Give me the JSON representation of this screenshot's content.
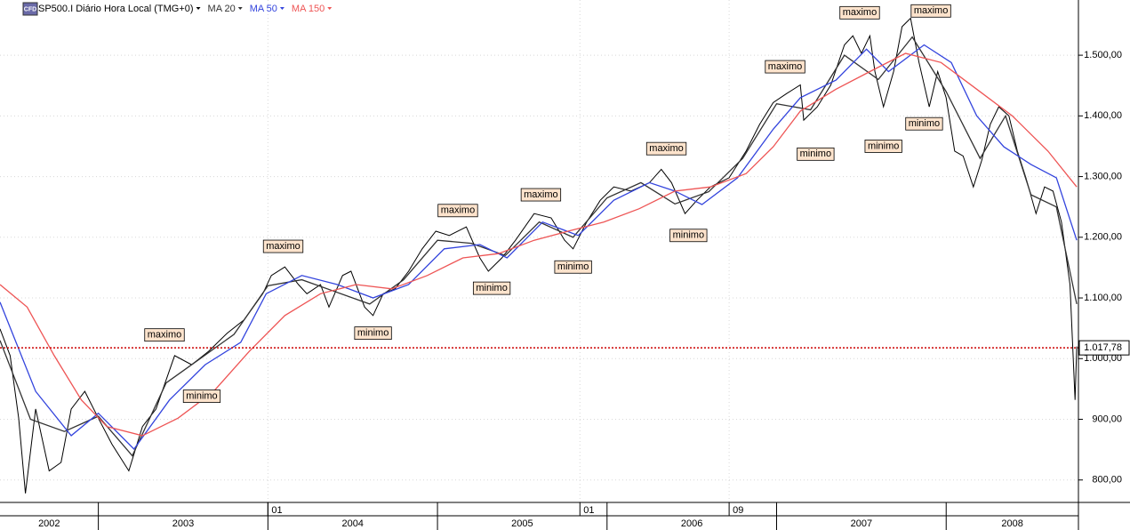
{
  "chart_data": {
    "type": "line",
    "instrument_icon": "CFD",
    "xlim": [
      2002.42,
      2008.78
    ],
    "ylim": [
      763,
      1591
    ],
    "xticks": [
      2002,
      2003,
      2004,
      2005,
      2006,
      2007,
      2008
    ],
    "top_marks": [
      {
        "value": 2004.0,
        "label": "01"
      },
      {
        "value": 2005.84,
        "label": "01"
      },
      {
        "value": 2006.72,
        "label": "09"
      }
    ],
    "yticks": [
      {
        "value": 800,
        "label": "800,00"
      },
      {
        "value": 900,
        "label": "900,00"
      },
      {
        "value": 1000,
        "label": "1.000,00"
      },
      {
        "value": 1100,
        "label": "1.100,00"
      },
      {
        "value": 1200,
        "label": "1.200,00"
      },
      {
        "value": 1300,
        "label": "1.300,00"
      },
      {
        "value": 1400,
        "label": "1.400,00"
      },
      {
        "value": 1500,
        "label": "1.500,00"
      }
    ],
    "grid": true,
    "series": [
      {
        "name": "SP500.I Diário Hora Local (TMG+0)",
        "color": "#000000",
        "x": [
          2002.42,
          2002.48,
          2002.53,
          2002.57,
          2002.63,
          2002.71,
          2002.78,
          2002.84,
          2002.92,
          2003.0,
          2003.08,
          2003.18,
          2003.26,
          2003.34,
          2003.45,
          2003.55,
          2003.65,
          2003.76,
          2003.86,
          2003.97,
          2004.02,
          2004.1,
          2004.18,
          2004.23,
          2004.31,
          2004.36,
          2004.44,
          2004.49,
          2004.57,
          2004.62,
          2004.68,
          2004.75,
          2004.83,
          2004.91,
          2004.99,
          2005.07,
          2005.17,
          2005.25,
          2005.3,
          2005.38,
          2005.46,
          2005.57,
          2005.67,
          2005.75,
          2005.8,
          2005.88,
          2005.96,
          2006.04,
          2006.14,
          2006.25,
          2006.32,
          2006.38,
          2006.46,
          2006.53,
          2006.61,
          2006.72,
          2006.82,
          2006.9,
          2006.98,
          2007.06,
          2007.14,
          2007.16,
          2007.24,
          2007.32,
          2007.4,
          2007.45,
          2007.5,
          2007.55,
          2007.58,
          2007.63,
          2007.69,
          2007.74,
          2007.79,
          2007.84,
          2007.9,
          2007.95,
          2008.0,
          2008.05,
          2008.1,
          2008.16,
          2008.21,
          2008.26,
          2008.31,
          2008.37,
          2008.42,
          2008.47,
          2008.53,
          2008.58,
          2008.63,
          2008.68,
          2008.73,
          2008.76,
          2008.77
        ],
        "values": [
          1049,
          1005,
          902,
          778,
          917,
          815,
          829,
          917,
          946,
          902,
          859,
          815,
          888,
          917,
          1005,
          990,
          1012,
          1042,
          1064,
          1107,
          1137,
          1151,
          1122,
          1107,
          1122,
          1085,
          1137,
          1144,
          1085,
          1071,
          1107,
          1115,
          1144,
          1181,
          1210,
          1203,
          1217,
          1166,
          1144,
          1166,
          1195,
          1239,
          1232,
          1195,
          1181,
          1225,
          1261,
          1283,
          1276,
          1290,
          1312,
          1290,
          1239,
          1261,
          1283,
          1298,
          1342,
          1386,
          1422,
          1437,
          1451,
          1393,
          1415,
          1451,
          1517,
          1532,
          1503,
          1532,
          1473,
          1415,
          1473,
          1547,
          1561,
          1488,
          1415,
          1473,
          1430,
          1342,
          1334,
          1283,
          1327,
          1386,
          1415,
          1400,
          1342,
          1298,
          1239,
          1283,
          1276,
          1225,
          1122,
          932,
          1020
        ]
      },
      {
        "name": "MA 20",
        "color": "#333333",
        "x": [
          2002.42,
          2002.6,
          2002.8,
          2003.0,
          2003.2,
          2003.4,
          2003.6,
          2003.8,
          2004.0,
          2004.2,
          2004.4,
          2004.6,
          2004.8,
          2005.0,
          2005.2,
          2005.4,
          2005.6,
          2005.8,
          2006.0,
          2006.2,
          2006.4,
          2006.6,
          2006.8,
          2007.0,
          2007.2,
          2007.4,
          2007.6,
          2007.8,
          2008.0,
          2008.2,
          2008.35,
          2008.5,
          2008.65,
          2008.77
        ],
        "values": [
          1030,
          900,
          880,
          905,
          840,
          960,
          1000,
          1040,
          1120,
          1130,
          1110,
          1090,
          1130,
          1195,
          1190,
          1170,
          1225,
          1200,
          1265,
          1290,
          1255,
          1275,
          1330,
          1420,
          1410,
          1500,
          1460,
          1530,
          1440,
          1330,
          1400,
          1270,
          1250,
          1090
        ]
      },
      {
        "name": "MA 50",
        "color": "#3344dd",
        "x": [
          2002.42,
          2002.63,
          2002.84,
          2003.0,
          2003.21,
          2003.42,
          2003.63,
          2003.84,
          2003.99,
          2004.2,
          2004.41,
          2004.62,
          2004.83,
          2005.04,
          2005.25,
          2005.41,
          2005.62,
          2005.83,
          2006.04,
          2006.25,
          2006.4,
          2006.56,
          2006.77,
          2006.98,
          2007.14,
          2007.35,
          2007.53,
          2007.66,
          2007.87,
          2008.03,
          2008.18,
          2008.34,
          2008.5,
          2008.65,
          2008.77
        ],
        "values": [
          1093,
          946,
          873,
          910,
          851,
          932,
          990,
          1027,
          1107,
          1137,
          1122,
          1100,
          1122,
          1181,
          1188,
          1166,
          1225,
          1203,
          1261,
          1290,
          1276,
          1254,
          1298,
          1378,
          1430,
          1459,
          1510,
          1473,
          1517,
          1488,
          1400,
          1349,
          1320,
          1298,
          1195
        ]
      },
      {
        "name": "MA 150",
        "color": "#ee5555",
        "x": [
          2002.42,
          2002.58,
          2002.74,
          2002.9,
          2003.05,
          2003.26,
          2003.47,
          2003.68,
          2003.89,
          2004.1,
          2004.31,
          2004.52,
          2004.73,
          2004.94,
          2005.15,
          2005.36,
          2005.57,
          2005.77,
          2005.98,
          2006.19,
          2006.4,
          2006.61,
          2006.82,
          2006.98,
          2007.14,
          2007.35,
          2007.55,
          2007.76,
          2007.97,
          2008.18,
          2008.39,
          2008.6,
          2008.77
        ],
        "values": [
          1122,
          1085,
          1005,
          932,
          888,
          873,
          902,
          946,
          1012,
          1071,
          1107,
          1122,
          1115,
          1137,
          1166,
          1173,
          1195,
          1210,
          1225,
          1247,
          1276,
          1283,
          1305,
          1349,
          1408,
          1444,
          1473,
          1503,
          1488,
          1444,
          1400,
          1342,
          1283
        ]
      }
    ],
    "annotations": [
      {
        "text": "maximo",
        "x": 2003.39,
        "y": 1039
      },
      {
        "text": "minimo",
        "x": 2003.61,
        "y": 938
      },
      {
        "text": "maximo",
        "x": 2004.09,
        "y": 1185
      },
      {
        "text": "minimo",
        "x": 2004.62,
        "y": 1042
      },
      {
        "text": "maximo",
        "x": 2005.12,
        "y": 1244
      },
      {
        "text": "minimo",
        "x": 2005.32,
        "y": 1116
      },
      {
        "text": "maximo",
        "x": 2005.61,
        "y": 1270
      },
      {
        "text": "minimo",
        "x": 2005.8,
        "y": 1151
      },
      {
        "text": "maximo",
        "x": 2006.35,
        "y": 1346
      },
      {
        "text": "minimo",
        "x": 2006.48,
        "y": 1203
      },
      {
        "text": "maximo",
        "x": 2007.05,
        "y": 1481
      },
      {
        "text": "minimo",
        "x": 2007.23,
        "y": 1337
      },
      {
        "text": "maximo",
        "x": 2007.49,
        "y": 1570
      },
      {
        "text": "minimo",
        "x": 2007.63,
        "y": 1350
      },
      {
        "text": "maximo",
        "x": 2007.91,
        "y": 1573
      },
      {
        "text": "minimo",
        "x": 2007.87,
        "y": 1387
      }
    ],
    "last_price": {
      "value": 1017.78,
      "value_label": "1.017,78",
      "color": "#cc0000"
    }
  }
}
